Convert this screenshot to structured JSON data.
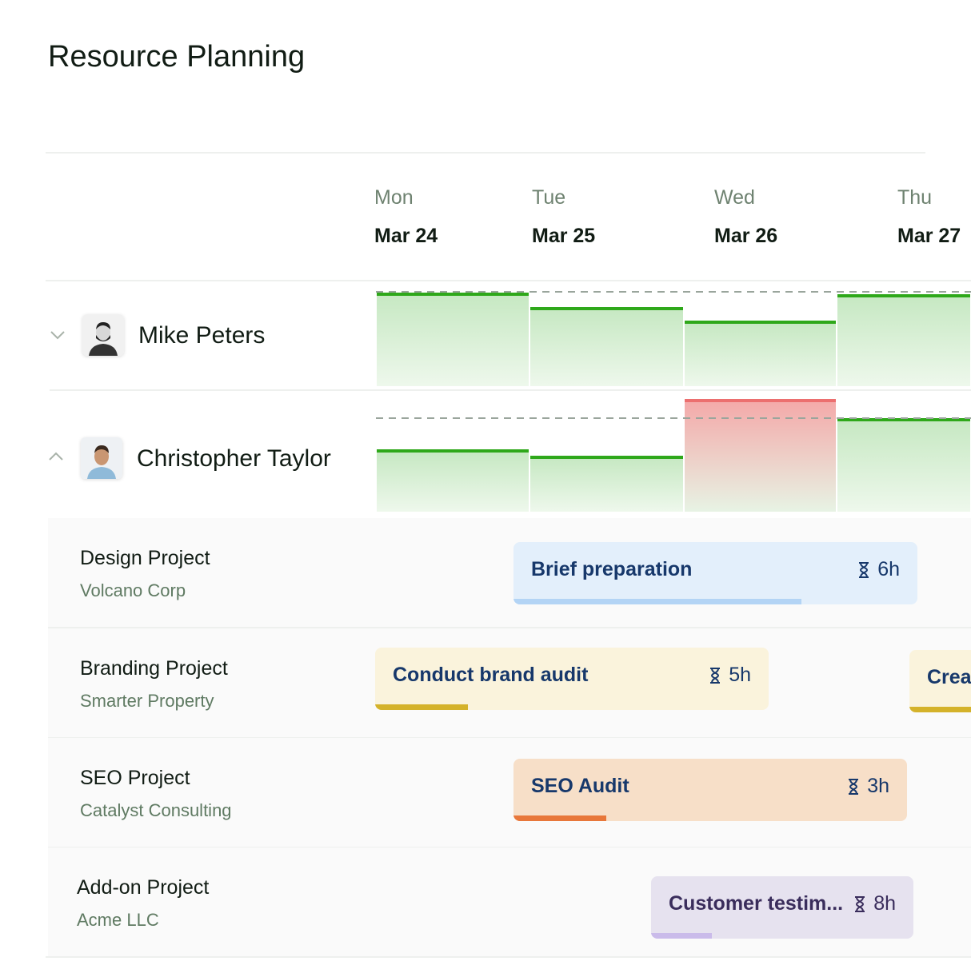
{
  "header": {
    "title": "Resource Planning"
  },
  "days": [
    {
      "weekday": "Mon",
      "date": "Mar 24"
    },
    {
      "weekday": "Tue",
      "date": "Mar 25"
    },
    {
      "weekday": "Wed",
      "date": "Mar 26"
    },
    {
      "weekday": "Thu",
      "date": "Mar 27"
    }
  ],
  "people": [
    {
      "name": "Mike Peters"
    },
    {
      "name": "Christopher Taylor"
    }
  ],
  "projects": [
    {
      "name": "Design Project",
      "client": "Volcano Corp",
      "tasks": [
        {
          "title": "Brief preparation",
          "hours": "6h"
        }
      ]
    },
    {
      "name": "Branding Project",
      "client": "Smarter Property",
      "tasks": [
        {
          "title": "Conduct brand audit",
          "hours": "5h"
        },
        {
          "title": "Crea"
        }
      ]
    },
    {
      "name": "SEO Project",
      "client": "Catalyst Consulting",
      "tasks": [
        {
          "title": "SEO Audit",
          "hours": "3h"
        }
      ]
    },
    {
      "name": "Add-on Project",
      "client": "Acme LLC",
      "tasks": [
        {
          "title": "Customer testim...",
          "hours": "8h"
        }
      ]
    }
  ]
}
